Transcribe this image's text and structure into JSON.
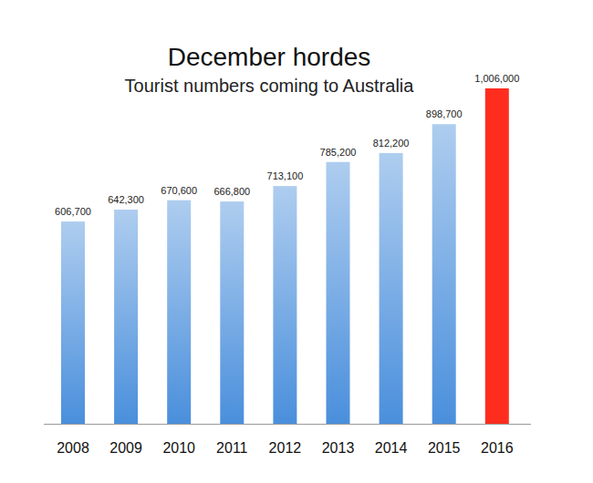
{
  "chart_data": {
    "type": "bar",
    "title": "December hordes",
    "subtitle": "Tourist numbers coming to Australia",
    "categories": [
      "2008",
      "2009",
      "2010",
      "2011",
      "2012",
      "2013",
      "2014",
      "2015",
      "2016"
    ],
    "values": [
      606700,
      642300,
      670600,
      666800,
      713100,
      785200,
      812200,
      898700,
      1006000
    ],
    "value_labels": [
      "606,700",
      "642,300",
      "670,600",
      "666,800",
      "713,100",
      "785,200",
      "812,200",
      "898,700",
      "1,006,000"
    ],
    "colors": [
      "#4a8fdc",
      "#4a8fdc",
      "#4a8fdc",
      "#4a8fdc",
      "#4a8fdc",
      "#4a8fdc",
      "#4a8fdc",
      "#4a8fdc",
      "#ff2d1e"
    ],
    "ylim": [
      0,
      1006000
    ],
    "data_labels": true,
    "tick_labels": "x",
    "grid": false
  }
}
